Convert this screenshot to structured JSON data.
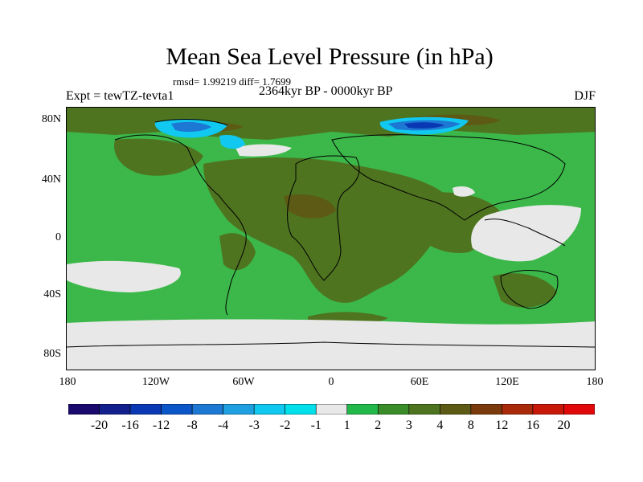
{
  "title": "Mean Sea Level Pressure (in hPa)",
  "stats": "rmsd= 1.99219 diff= 1.7699",
  "left_label": "Expt = tewTZ-tevta1",
  "center_label": "2364kyr BP - 0000kyr BP",
  "right_label": "DJF",
  "y_axis": {
    "ticks": [
      "80N",
      "40N",
      "0",
      "40S",
      "80S"
    ]
  },
  "x_axis": {
    "ticks": [
      "180",
      "120W",
      "60W",
      "0",
      "60E",
      "120E",
      "180"
    ]
  },
  "colorbar": {
    "colors": [
      "#1a0a6e",
      "#12208e",
      "#0a38b4",
      "#0a56c8",
      "#1c78d2",
      "#1ea0e0",
      "#10c8f0",
      "#00e0ea",
      "#e8e8e8",
      "#22b84a",
      "#3a8c2a",
      "#4e7420",
      "#5c5a14",
      "#7a3a0c",
      "#a82a08",
      "#c81808",
      "#e00808"
    ],
    "labels": [
      "-20",
      "-16",
      "-12",
      "-8",
      "-4",
      "-3",
      "-2",
      "-1",
      "1",
      "2",
      "3",
      "4",
      "8",
      "12",
      "16",
      "20"
    ]
  },
  "map_colors": {
    "ocean_base": "#3cb84a",
    "brown": "#4e7420",
    "darker_brown": "#5c5a14",
    "white": "#e8e8e8",
    "light_blue": "#10c8f0",
    "mid_blue": "#1c78d2",
    "dark_blue": "#0a38b4",
    "coast": "#000000"
  }
}
